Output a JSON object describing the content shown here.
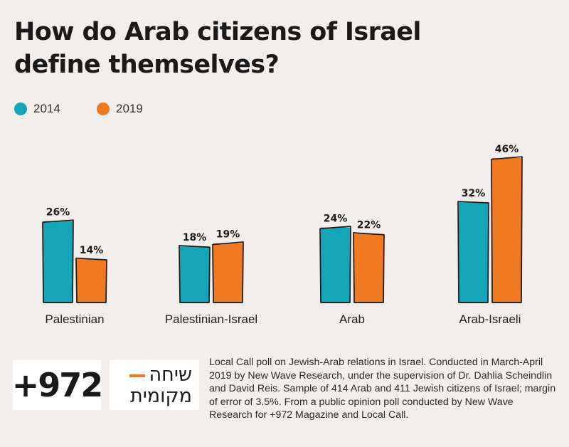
{
  "title": "How do Arab citizens of Israel define themselves?",
  "legend": [
    {
      "label": "2014",
      "color": "#14a6b8"
    },
    {
      "label": "2019",
      "color": "#ef7a22"
    }
  ],
  "chart_data": {
    "type": "bar",
    "title": "How do Arab citizens of Israel define themselves?",
    "categories": [
      "Palestinian",
      "Palestinian-Israel",
      "Arab",
      "Arab-Israeli"
    ],
    "series": [
      {
        "name": "2014",
        "color": "#14a6b8",
        "values": [
          26,
          18,
          24,
          32
        ],
        "labels": [
          "26%",
          "18%",
          "24%",
          "32%"
        ]
      },
      {
        "name": "2019",
        "color": "#ef7a22",
        "values": [
          14,
          19,
          22,
          46
        ],
        "labels": [
          "14%",
          "19%",
          "22%",
          "46%"
        ]
      }
    ],
    "xlabel": "",
    "ylabel": "",
    "unit": "%",
    "grid": false,
    "legend_position": "top-left",
    "ylim": [
      0,
      50
    ]
  },
  "logos": {
    "plus972": "+972",
    "local_call_line1": "שיחה",
    "local_call_line2": "מקומית",
    "local_call_accent": "#ef7a22"
  },
  "footnote": "Local Call poll on Jewish-Arab relations in Israel. Conducted in March-April 2019 by New Wave Research, under the supervision of Dr. Dahlia Scheindlin and David Reis. Sample of 414 Arab and 411 Jewish citizens of Israel; margin of error of 3.5%. From a public opinion poll conducted by New Wave Research for +972 Magazine and Local Call."
}
